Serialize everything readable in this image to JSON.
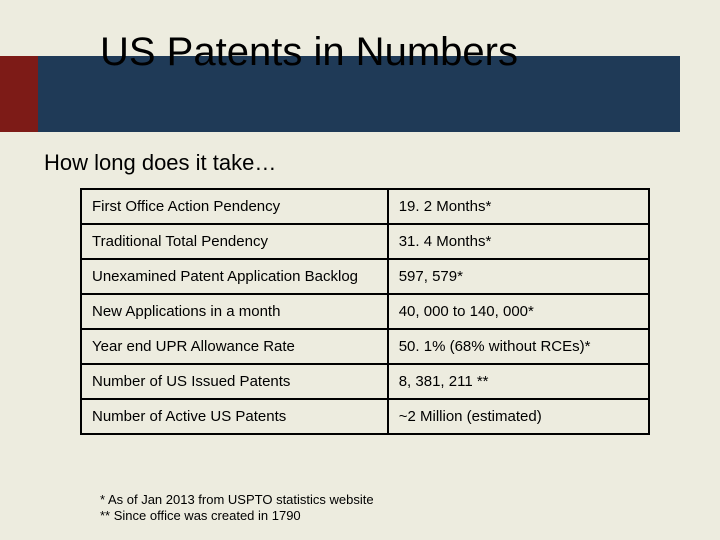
{
  "slide": {
    "title": "US Patents in Numbers",
    "subtitle": "How long does it take…",
    "colors": {
      "background": "#edecdf",
      "accent_bar": "#7d1b17",
      "title_bar": "#1f3a57",
      "table_border": "#000000",
      "text": "#000000"
    },
    "title_fontsize": 40,
    "subtitle_fontsize": 22,
    "table_fontsize": 15,
    "footnote_fontsize": 13
  },
  "table": {
    "type": "table",
    "columns": [
      "label",
      "value"
    ],
    "column_widths": [
      "54%",
      "46%"
    ],
    "rows": [
      {
        "label": "First Office Action Pendency",
        "value": "19. 2 Months*"
      },
      {
        "label": "Traditional Total Pendency",
        "value": "31. 4 Months*"
      },
      {
        "label": "Unexamined Patent Application Backlog",
        "value": "597, 579*"
      },
      {
        "label": "New Applications in a month",
        "value": "40, 000 to 140, 000*"
      },
      {
        "label": "Year end UPR Allowance Rate",
        "value": "50. 1% (68% without RCEs)*"
      },
      {
        "label": "Number of US Issued Patents",
        "value": "8, 381, 211 **"
      },
      {
        "label": "Number of Active US Patents",
        "value": "~2 Million (estimated)"
      }
    ]
  },
  "footnotes": {
    "line1": "* As of Jan 2013 from USPTO statistics website",
    "line2": "** Since office was created in 1790"
  }
}
